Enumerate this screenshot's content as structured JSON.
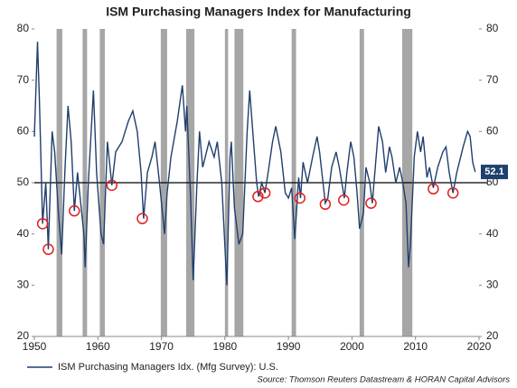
{
  "chart_data": {
    "type": "line",
    "title": "ISM Purchasing Managers Index for Manufacturing",
    "source": "Source: Thomson Reuters Datastream & HORAN Capital Advisors",
    "xlim": [
      1950,
      2020
    ],
    "xticks": [
      1950,
      1960,
      1970,
      1980,
      1990,
      2000,
      2010,
      2020
    ],
    "ylim": [
      20,
      80
    ],
    "yticks": [
      20,
      30,
      40,
      50,
      60,
      70,
      80
    ],
    "y2lim": [
      20,
      80
    ],
    "y2ticks": [
      20,
      30,
      40,
      50,
      60,
      70,
      80
    ],
    "reference_line": 50,
    "recessions": [
      [
        1953.5,
        1954.4
      ],
      [
        1957.6,
        1958.3
      ],
      [
        1960.3,
        1961.1
      ],
      [
        1969.9,
        1970.9
      ],
      [
        1973.9,
        1975.2
      ],
      [
        1980.0,
        1980.5
      ],
      [
        1981.5,
        1982.9
      ],
      [
        1990.5,
        1991.2
      ],
      [
        2001.2,
        2001.9
      ],
      [
        2007.9,
        2009.5
      ]
    ],
    "highlighted_points": {
      "color": "#e02020",
      "x": [
        1951.3,
        1952.2,
        1956.3,
        1962.2,
        1967.0,
        1985.2,
        1986.3,
        1991.8,
        1995.8,
        1998.7,
        2003.0,
        2012.8,
        2015.9
      ],
      "y": [
        42,
        37,
        44.5,
        49.5,
        43,
        47.3,
        48,
        47,
        45.8,
        46.6,
        46,
        48.8,
        48
      ]
    },
    "x": [
      1950.0,
      1950.5,
      1950.8,
      1951.3,
      1951.8,
      1952.2,
      1952.8,
      1953.2,
      1953.8,
      1954.3,
      1954.8,
      1955.3,
      1955.8,
      1956.3,
      1956.8,
      1957.3,
      1957.8,
      1958.0,
      1958.5,
      1959.3,
      1959.8,
      1960.5,
      1960.9,
      1961.5,
      1962.0,
      1962.2,
      1962.8,
      1963.8,
      1964.8,
      1965.5,
      1966.2,
      1966.8,
      1967.2,
      1967.8,
      1968.5,
      1969.0,
      1969.7,
      1970.5,
      1970.9,
      1971.5,
      1972.5,
      1973.3,
      1973.8,
      1974.0,
      1974.6,
      1975.0,
      1975.6,
      1976.0,
      1976.5,
      1977.5,
      1978.3,
      1978.8,
      1979.5,
      1980.3,
      1980.8,
      1981.0,
      1981.5,
      1982.2,
      1982.8,
      1983.5,
      1983.9,
      1984.5,
      1985.0,
      1985.3,
      1985.8,
      1986.3,
      1986.8,
      1987.5,
      1988.0,
      1988.8,
      1989.5,
      1990.0,
      1990.5,
      1991.0,
      1991.6,
      1991.9,
      1992.3,
      1993.0,
      1993.8,
      1994.5,
      1994.9,
      1995.8,
      1996.2,
      1996.8,
      1997.5,
      1998.0,
      1998.8,
      1999.2,
      1999.8,
      2000.3,
      2000.8,
      2001.2,
      2001.8,
      2002.2,
      2002.8,
      2003.2,
      2003.8,
      2004.2,
      2004.8,
      2005.3,
      2005.9,
      2006.3,
      2006.9,
      2007.5,
      2008.0,
      2008.5,
      2008.9,
      2009.2,
      2009.8,
      2010.3,
      2010.8,
      2011.2,
      2011.8,
      2012.2,
      2012.8,
      2013.5,
      2014.3,
      2014.8,
      2015.3,
      2015.9,
      2016.5,
      2017.5,
      2018.2,
      2018.6,
      2019.0,
      2019.4
    ],
    "series": [
      {
        "name": "ISM Purchasing Managers Idx. (Mfg Survey): U.S.",
        "color": "#1f3f6e",
        "values": [
          59,
          77.5,
          66,
          42,
          50,
          37,
          60,
          56,
          44,
          36,
          52,
          65,
          58,
          44.5,
          52,
          46,
          40,
          33.5,
          50,
          68,
          52,
          40,
          38,
          58,
          52,
          49.5,
          56,
          58,
          62,
          64,
          60,
          52,
          43,
          52,
          55,
          58,
          50,
          40,
          48,
          55,
          62,
          69,
          60,
          65,
          47,
          31,
          50,
          60,
          53,
          58,
          55,
          58,
          50,
          30,
          55,
          58,
          45,
          38,
          40,
          60,
          68,
          58,
          50,
          47.3,
          50,
          48,
          52,
          58,
          61,
          56,
          48,
          47,
          49,
          39,
          51,
          47,
          54,
          50,
          55,
          59,
          56,
          46,
          47,
          53,
          56,
          53,
          47,
          52,
          58,
          55,
          48,
          41,
          44,
          53,
          50,
          46,
          55,
          61,
          58,
          52,
          57,
          55,
          50,
          53,
          50,
          46,
          33.5,
          38,
          55,
          60,
          56,
          59,
          51,
          53,
          49,
          53,
          56,
          57,
          52,
          48,
          52,
          57,
          60,
          59,
          54,
          52.1
        ]
      }
    ],
    "legend": "bottom-left"
  }
}
